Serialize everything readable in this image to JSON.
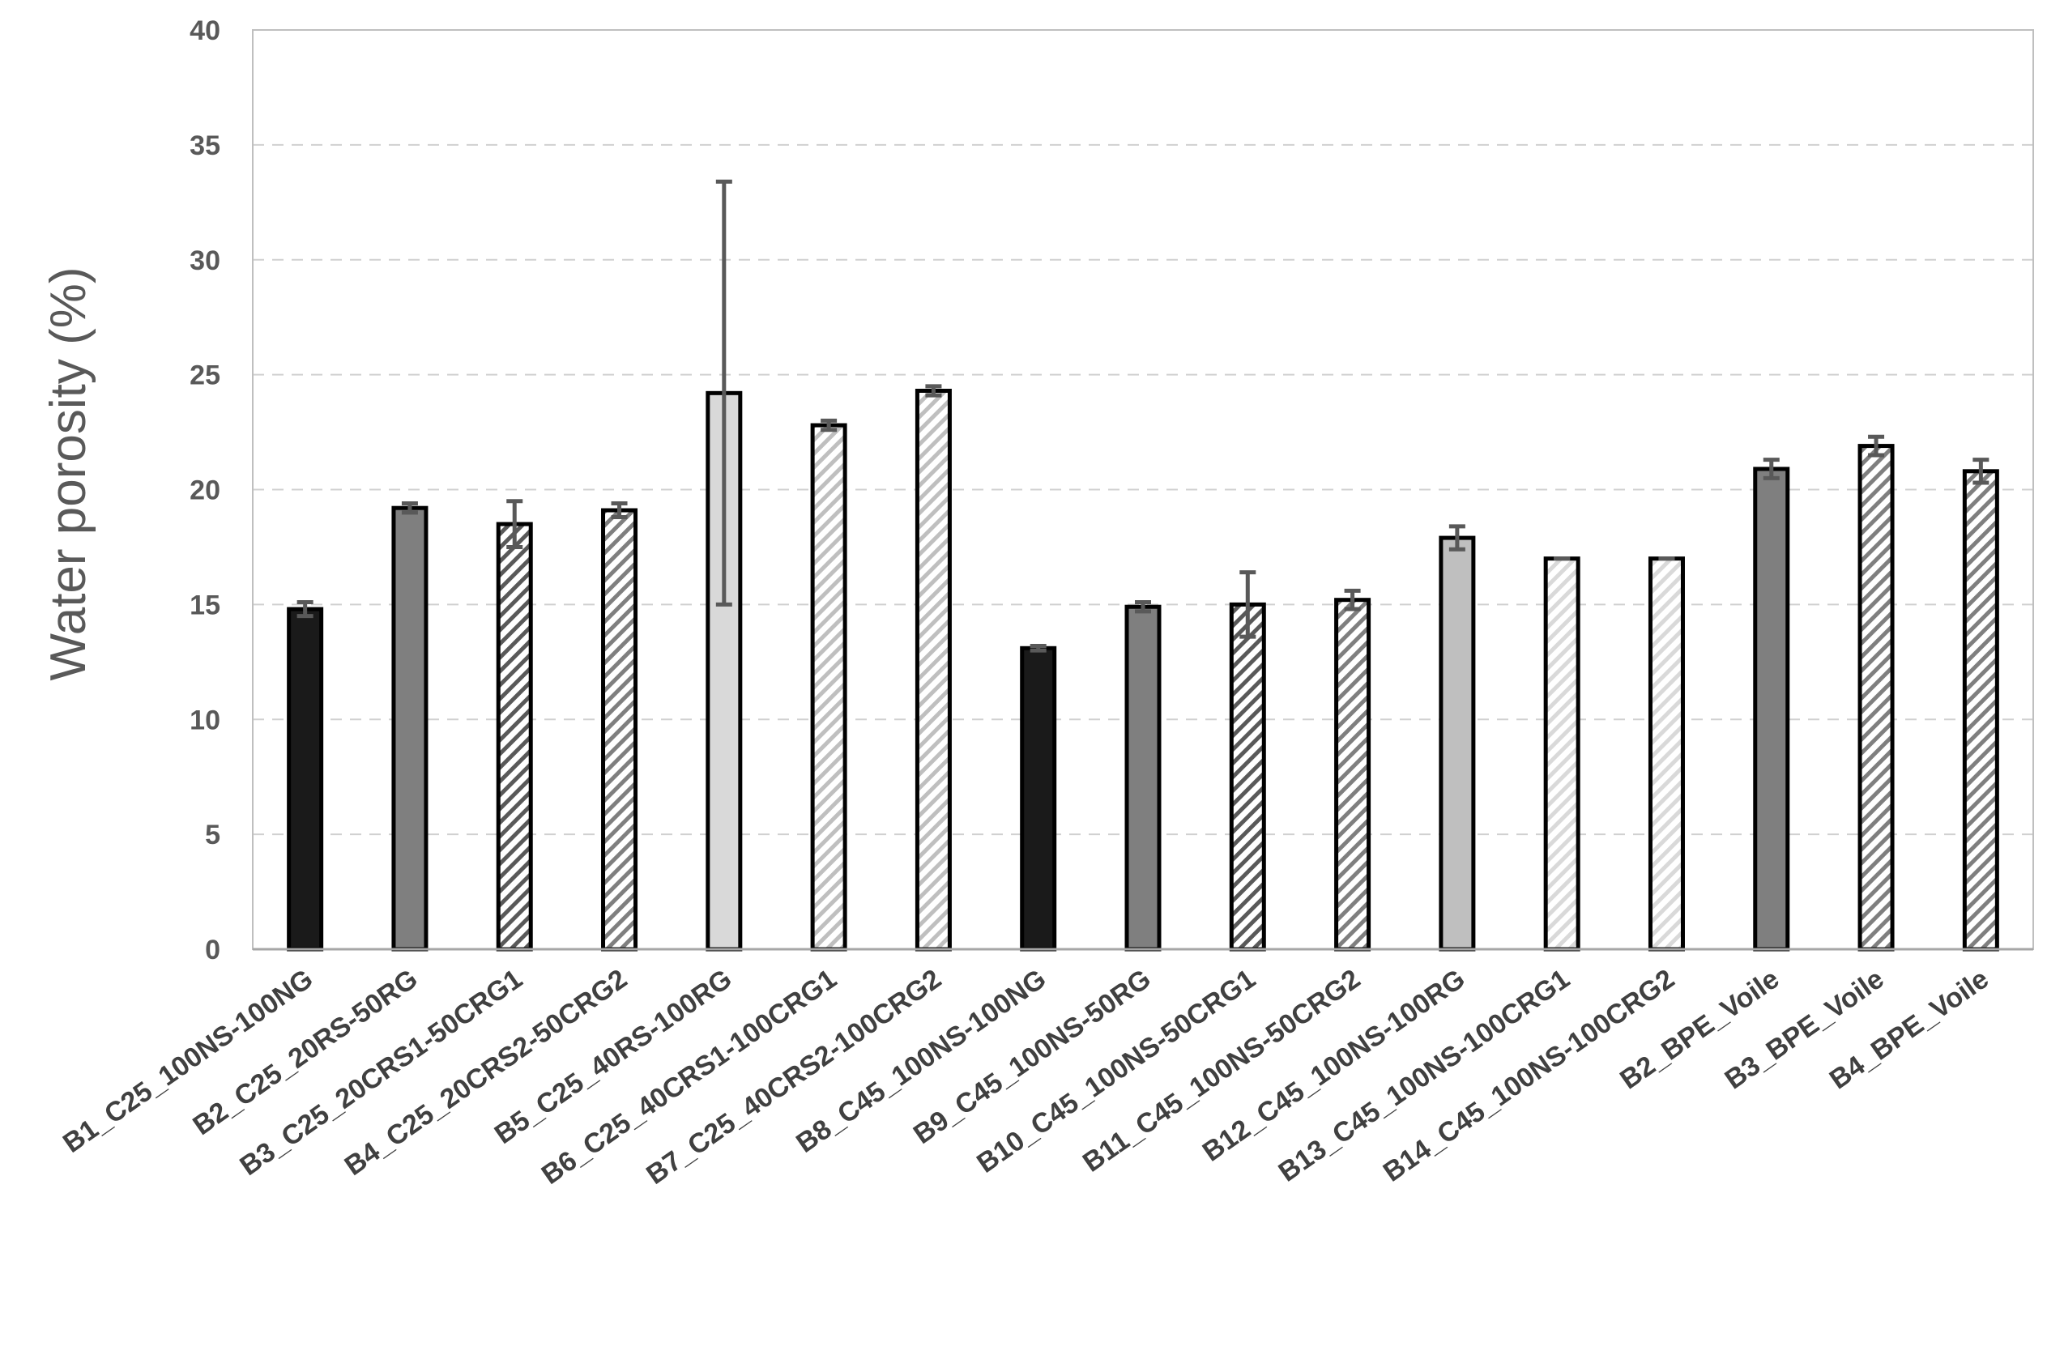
{
  "chart_data": {
    "type": "bar",
    "title": "",
    "xlabel": "",
    "ylabel": "Water porosity (%)",
    "ylim": [
      0,
      40
    ],
    "yticks": [
      0,
      5,
      10,
      15,
      20,
      25,
      30,
      35,
      40
    ],
    "grid": "horizontal dashed",
    "legend": "none",
    "categories": [
      "B1_C25_100NS-100NG",
      "B2_C25_20RS-50RG",
      "B3_C25_20CRS1-50CRG1",
      "B4_C25_20CRS2-50CRG2",
      "B5_C25_40RS-100RG",
      "B6_C25_40CRS1-100CRG1",
      "B7_C25_40CRS2-100CRG2",
      "B8_C45_100NS-100NG",
      "B9_C45_100NS-50RG",
      "B10_C45_100NS-50CRG1",
      "B11_C45_100NS-50CRG2",
      "B12_C45_100NS-100RG",
      "B13_C45_100NS-100CRG1",
      "B14_C45_100NS-100CRG2",
      "B2_BPE_Voile",
      "B3_BPE_Voile",
      "B4_BPE_Voile"
    ],
    "values": [
      14.8,
      19.2,
      18.5,
      19.1,
      24.2,
      22.8,
      24.3,
      13.1,
      14.9,
      15.0,
      15.2,
      17.9,
      17.0,
      17.0,
      20.9,
      21.9,
      20.8
    ],
    "errors": [
      0.3,
      0.2,
      1.0,
      0.3,
      9.2,
      0.2,
      0.2,
      0.1,
      0.2,
      1.4,
      0.4,
      0.5,
      0.0,
      0.0,
      0.4,
      0.4,
      0.5
    ],
    "fills": [
      "solid",
      "solid",
      "hatch",
      "hatch",
      "solid",
      "hatch",
      "hatch",
      "solid",
      "solid",
      "hatch",
      "hatch",
      "solid",
      "hatch",
      "hatch",
      "solid",
      "hatch",
      "hatch"
    ],
    "colors": [
      "#1a1a1a",
      "#7f7f7f",
      "#595959",
      "#7f7f7f",
      "#d9d9d9",
      "#bfbfbf",
      "#bfbfbf",
      "#1a1a1a",
      "#7f7f7f",
      "#595959",
      "#7f7f7f",
      "#bfbfbf",
      "#d9d9d9",
      "#d9d9d9",
      "#7f7f7f",
      "#7f7f7f",
      "#7f7f7f"
    ]
  }
}
